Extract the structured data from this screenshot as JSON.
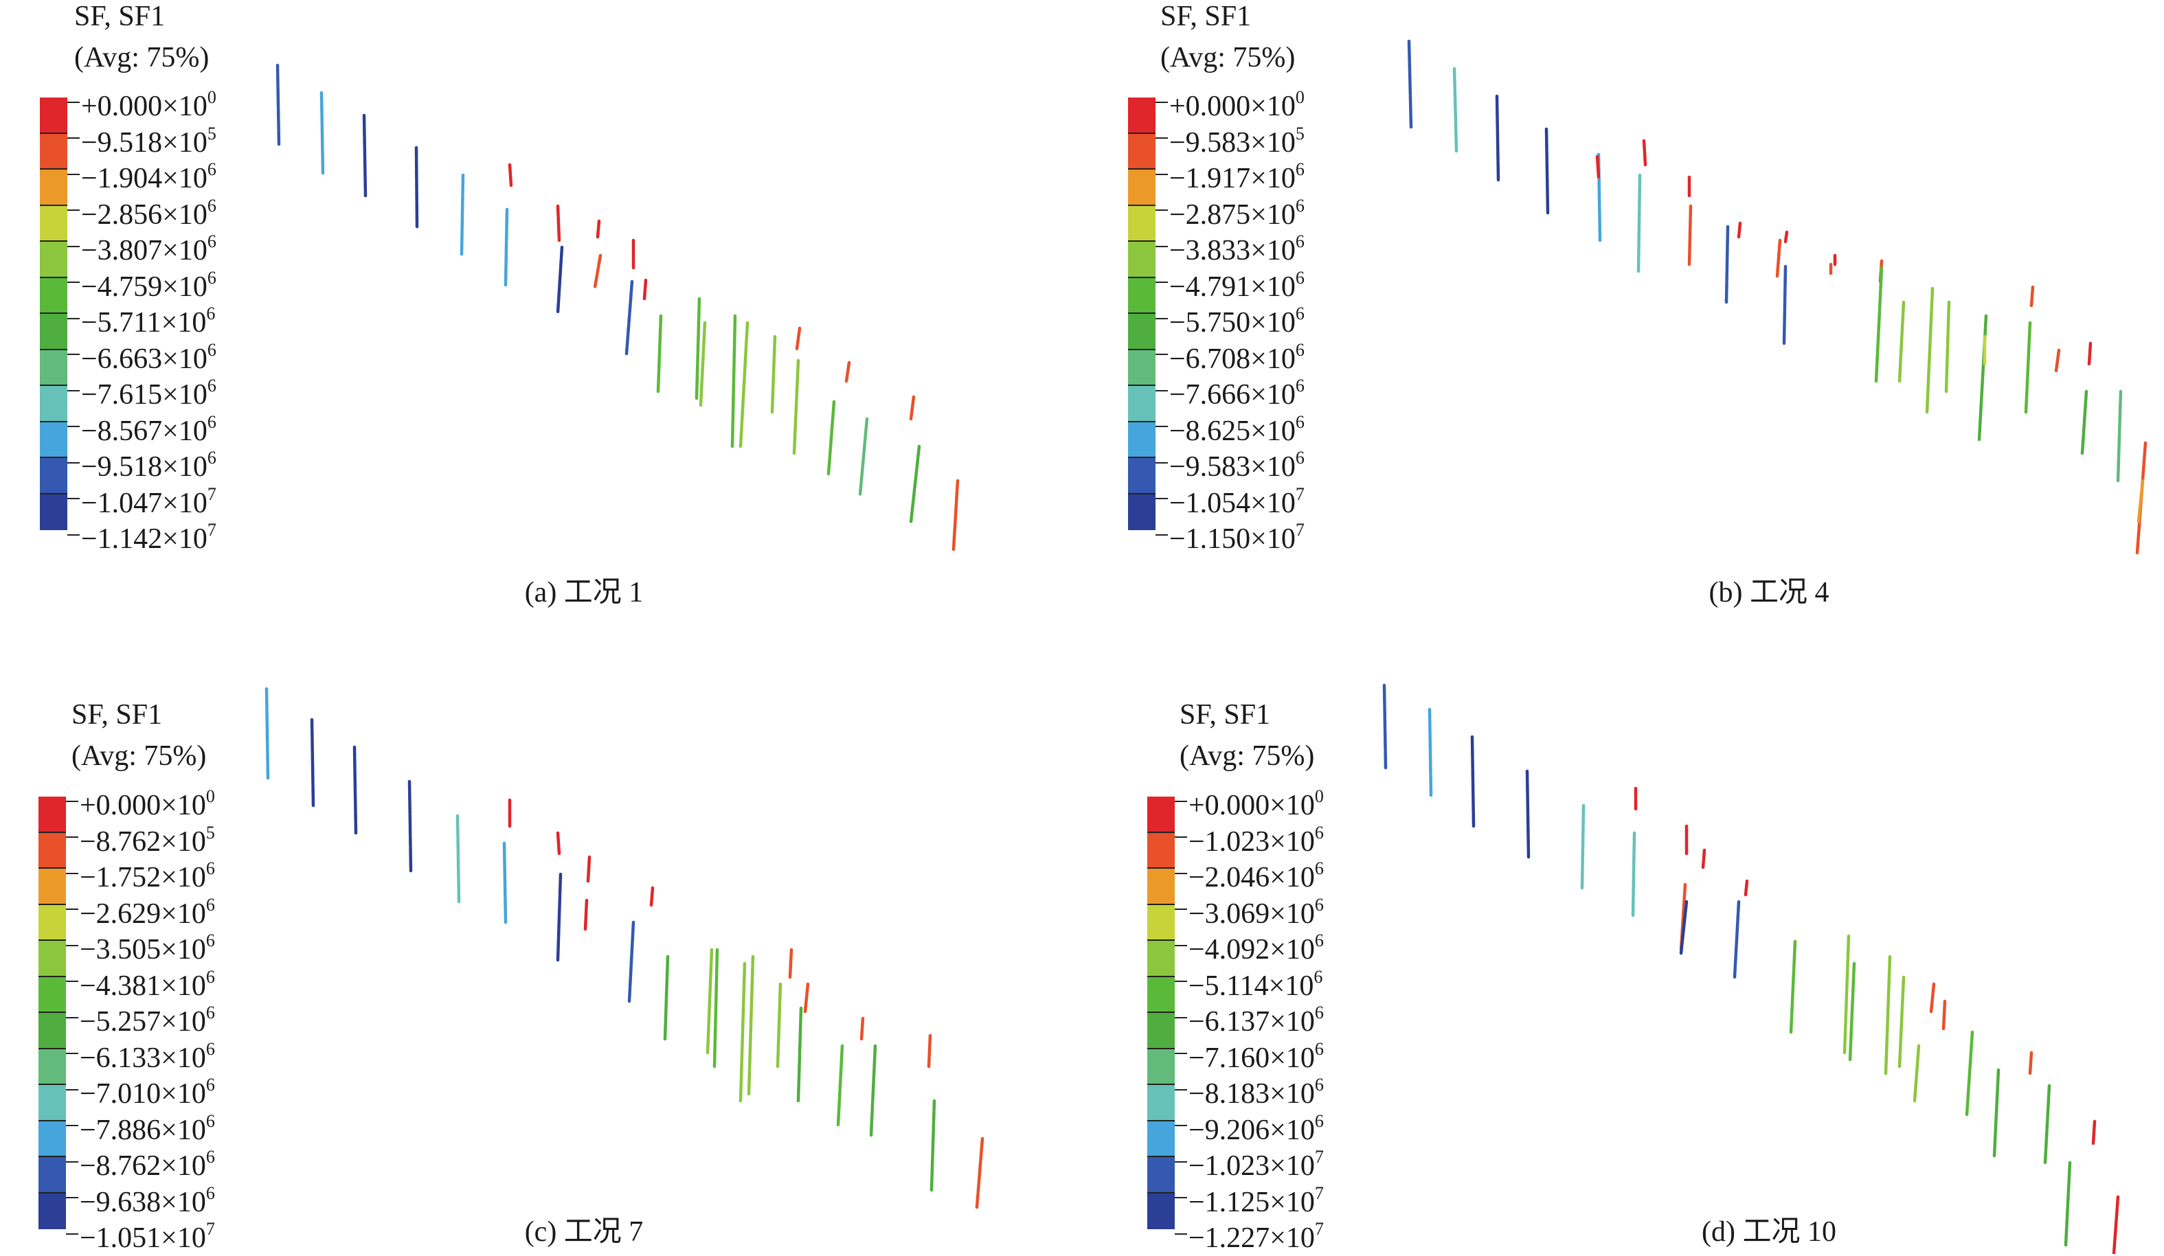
{
  "colors": [
    "#e0262a",
    "#e8512a",
    "#eb9a2a",
    "#c6d43a",
    "#8cc63f",
    "#5bb93a",
    "#4fae3f",
    "#62bb7a",
    "#66c2b8",
    "#45a5dc",
    "#3559b0",
    "#2b3f96"
  ],
  "panels": [
    {
      "id": "a",
      "legend_title": [
        "SF, SF1",
        "(Avg: 75%)"
      ],
      "caption": "(a) 工况 1",
      "ticks": [
        {
          "mant": "+0.000",
          "exp": "0"
        },
        {
          "mant": "−9.518",
          "exp": "5"
        },
        {
          "mant": "−1.904",
          "exp": "6"
        },
        {
          "mant": "−2.856",
          "exp": "6"
        },
        {
          "mant": "−3.807",
          "exp": "6"
        },
        {
          "mant": "−4.759",
          "exp": "6"
        },
        {
          "mant": "−5.711",
          "exp": "6"
        },
        {
          "mant": "−6.663",
          "exp": "6"
        },
        {
          "mant": "−7.615",
          "exp": "6"
        },
        {
          "mant": "−8.567",
          "exp": "6"
        },
        {
          "mant": "−9.518",
          "exp": "6"
        },
        {
          "mant": "−1.047",
          "exp": "7"
        },
        {
          "mant": "−1.142",
          "exp": "7"
        }
      ]
    },
    {
      "id": "b",
      "legend_title": [
        "SF, SF1",
        "(Avg: 75%)"
      ],
      "caption": "(b) 工况 4",
      "ticks": [
        {
          "mant": "+0.000",
          "exp": "0"
        },
        {
          "mant": "−9.583",
          "exp": "5"
        },
        {
          "mant": "−1.917",
          "exp": "6"
        },
        {
          "mant": "−2.875",
          "exp": "6"
        },
        {
          "mant": "−3.833",
          "exp": "6"
        },
        {
          "mant": "−4.791",
          "exp": "6"
        },
        {
          "mant": "−5.750",
          "exp": "6"
        },
        {
          "mant": "−6.708",
          "exp": "6"
        },
        {
          "mant": "−7.666",
          "exp": "6"
        },
        {
          "mant": "−8.625",
          "exp": "6"
        },
        {
          "mant": "−9.583",
          "exp": "6"
        },
        {
          "mant": "−1.054",
          "exp": "7"
        },
        {
          "mant": "−1.150",
          "exp": "7"
        }
      ]
    },
    {
      "id": "c",
      "legend_title": [
        "SF, SF1",
        "(Avg: 75%)"
      ],
      "caption": "(c) 工况 7",
      "ticks": [
        {
          "mant": "+0.000",
          "exp": "0"
        },
        {
          "mant": "−8.762",
          "exp": "5"
        },
        {
          "mant": "−1.752",
          "exp": "6"
        },
        {
          "mant": "−2.629",
          "exp": "6"
        },
        {
          "mant": "−3.505",
          "exp": "6"
        },
        {
          "mant": "−4.381",
          "exp": "6"
        },
        {
          "mant": "−5.257",
          "exp": "6"
        },
        {
          "mant": "−6.133",
          "exp": "6"
        },
        {
          "mant": "−7.010",
          "exp": "6"
        },
        {
          "mant": "−7.886",
          "exp": "6"
        },
        {
          "mant": "−8.762",
          "exp": "6"
        },
        {
          "mant": "−9.638",
          "exp": "6"
        },
        {
          "mant": "−1.051",
          "exp": "7"
        }
      ]
    },
    {
      "id": "d",
      "legend_title": [
        "SF, SF1",
        "(Avg: 75%)"
      ],
      "caption": "(d) 工况 10",
      "ticks": [
        {
          "mant": "+0.000",
          "exp": "0"
        },
        {
          "mant": "−1.023",
          "exp": "6"
        },
        {
          "mant": "−2.046",
          "exp": "6"
        },
        {
          "mant": "−3.069",
          "exp": "6"
        },
        {
          "mant": "−4.092",
          "exp": "6"
        },
        {
          "mant": "−5.114",
          "exp": "6"
        },
        {
          "mant": "−6.137",
          "exp": "6"
        },
        {
          "mant": "−7.160",
          "exp": "6"
        },
        {
          "mant": "−8.183",
          "exp": "6"
        },
        {
          "mant": "−9.206",
          "exp": "6"
        },
        {
          "mant": "−1.023",
          "exp": "7"
        },
        {
          "mant": "−1.125",
          "exp": "7"
        },
        {
          "mant": "−1.227",
          "exp": "7"
        }
      ]
    }
  ]
}
